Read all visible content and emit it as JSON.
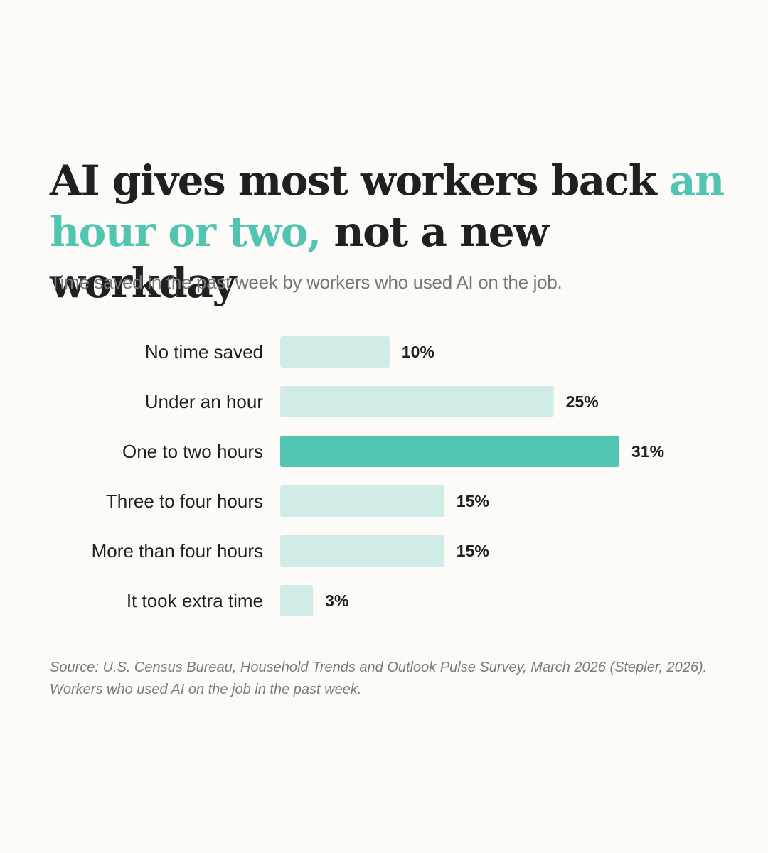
{
  "title": {
    "part1": "AI gives most workers back ",
    "accent": "an hour or two,",
    "part2": " not a new workday"
  },
  "subtitle": "Time saved in the past week by workers who used AI on the job.",
  "source": "Source: U.S. Census Bureau, Household Trends and Outlook Pulse Survey, March 2026 (Stepler, 2026). Workers who used AI on the job in the past week.",
  "colors": {
    "highlight": "#52c5b2",
    "bar": "#cfede6",
    "accent_text": "#52c5b2"
  },
  "chart_data": {
    "type": "bar",
    "orientation": "horizontal",
    "categories": [
      "No time saved",
      "Under an hour",
      "One to two hours",
      "Three to four hours",
      "More than four hours",
      "It took extra time"
    ],
    "values": [
      10,
      25,
      31,
      15,
      15,
      3
    ],
    "value_labels": [
      "10%",
      "25%",
      "31%",
      "15%",
      "15%",
      "3%"
    ],
    "highlight_category": "One to two hours",
    "unit": "%",
    "xlim": [
      0,
      31
    ],
    "grid": false,
    "legend": "none"
  }
}
